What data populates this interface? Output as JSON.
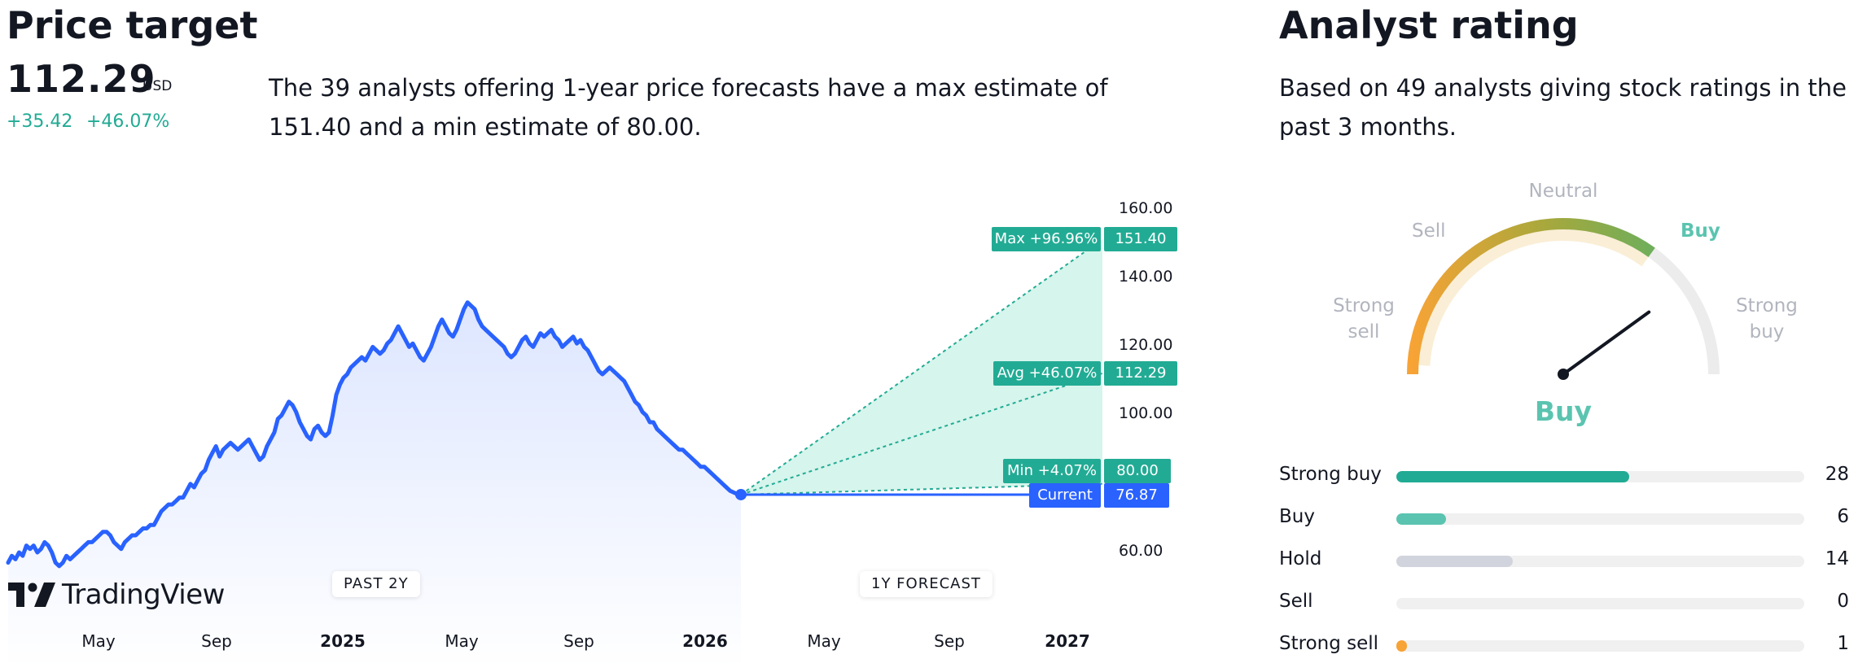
{
  "price_target": {
    "title": "Price target",
    "price": "112.29",
    "currency": "USD",
    "change": "+35.42",
    "change_pct": "+46.07%",
    "description": "The 39 analysts offering 1-year price forecasts have a max estimate of 151.40 and a min estimate of 80.00."
  },
  "chart_data": {
    "type": "line",
    "y_ticks": [
      "160.00",
      "140.00",
      "120.00",
      "100.00",
      "60.00"
    ],
    "ylim": [
      55,
      165
    ],
    "x_ticks": [
      {
        "label": "May",
        "bold": false
      },
      {
        "label": "Sep",
        "bold": false
      },
      {
        "label": "2025",
        "bold": true
      },
      {
        "label": "May",
        "bold": false
      },
      {
        "label": "Sep",
        "bold": false
      },
      {
        "label": "2026",
        "bold": true
      },
      {
        "label": "May",
        "bold": false
      },
      {
        "label": "Sep",
        "bold": false
      },
      {
        "label": "2027",
        "bold": true
      }
    ],
    "history_series": [
      57,
      59,
      58,
      60,
      59,
      62,
      61,
      62,
      60,
      61,
      63,
      62,
      60,
      57,
      56,
      57,
      59,
      58,
      59,
      60,
      61,
      62,
      63,
      63,
      64,
      65,
      66,
      66,
      65,
      63,
      62,
      61,
      63,
      64,
      65,
      65,
      66,
      67,
      67,
      68,
      68,
      70,
      72,
      73,
      74,
      74,
      75,
      76,
      76,
      78,
      80,
      79,
      81,
      83,
      84,
      87,
      89,
      91,
      88,
      90,
      91,
      92,
      91,
      90,
      91,
      92,
      93,
      91,
      89,
      87,
      88,
      91,
      93,
      95,
      99,
      100,
      102,
      104,
      103,
      101,
      98,
      96,
      94,
      93,
      96,
      97,
      95,
      94,
      95,
      100,
      106,
      109,
      111,
      112,
      114,
      115,
      116,
      117,
      116,
      118,
      120,
      119,
      118,
      119,
      121,
      122,
      124,
      126,
      124,
      122,
      120,
      121,
      119,
      117,
      116,
      118,
      120,
      123,
      126,
      128,
      126,
      124,
      123,
      125,
      128,
      131,
      133,
      132,
      131,
      128,
      126,
      125,
      124,
      123,
      122,
      121,
      120,
      118,
      117,
      118,
      120,
      122,
      123,
      121,
      120,
      122,
      124,
      123,
      124,
      125,
      123,
      122,
      120,
      121,
      122,
      123,
      121,
      122,
      120,
      119,
      117,
      115,
      113,
      112,
      113,
      114,
      113,
      112,
      111,
      110,
      108,
      106,
      104,
      103,
      101,
      100,
      98,
      98,
      96,
      95,
      94,
      93,
      92,
      91,
      90,
      90,
      89,
      88,
      87,
      86,
      85,
      85,
      84,
      83,
      82,
      81,
      80,
      79,
      78,
      77.5,
      77,
      76.87
    ],
    "current": 76.87,
    "forecast": {
      "max": 151.4,
      "avg": 112.29,
      "min": 80.0
    }
  },
  "badges": {
    "max_label": "Max +96.96%",
    "max_value": "151.40",
    "avg_label": "Avg +46.07%",
    "avg_value": "112.29",
    "min_label": "Min +4.07%",
    "min_value": "80.00",
    "current_label": "Current",
    "current_value": "76.87"
  },
  "pills": {
    "past": "PAST 2Y",
    "forecast": "1Y FORECAST"
  },
  "logo": {
    "text": "TradingView"
  },
  "analyst_rating": {
    "title": "Analyst rating",
    "description": "Based on 49 analysts giving stock ratings in the past 3 months.",
    "gauge": {
      "labels": {
        "strong_sell_1": "Strong",
        "strong_sell_2": "sell",
        "sell": "Sell",
        "neutral": "Neutral",
        "buy": "Buy",
        "strong_buy_1": "Strong",
        "strong_buy_2": "buy"
      },
      "result": "Buy",
      "needle_level": 0.8
    },
    "breakdown": [
      {
        "label": "Strong buy",
        "count": "28",
        "fraction": 0.571,
        "color": "#22ab94"
      },
      {
        "label": "Buy",
        "count": "6",
        "fraction": 0.122,
        "color": "#5bc4b0"
      },
      {
        "label": "Hold",
        "count": "14",
        "fraction": 0.286,
        "color": "#d1d4dc"
      },
      {
        "label": "Sell",
        "count": "0",
        "fraction": 0.0,
        "color": "#f7a335"
      },
      {
        "label": "Strong sell",
        "count": "1",
        "fraction": 0.02,
        "color": "#f7a335"
      }
    ]
  },
  "colors": {
    "accent_green": "#22ab94",
    "line_blue": "#2962ff",
    "forecast_fill": "#d6f5ec",
    "gauge_orange": "#f7a335"
  }
}
